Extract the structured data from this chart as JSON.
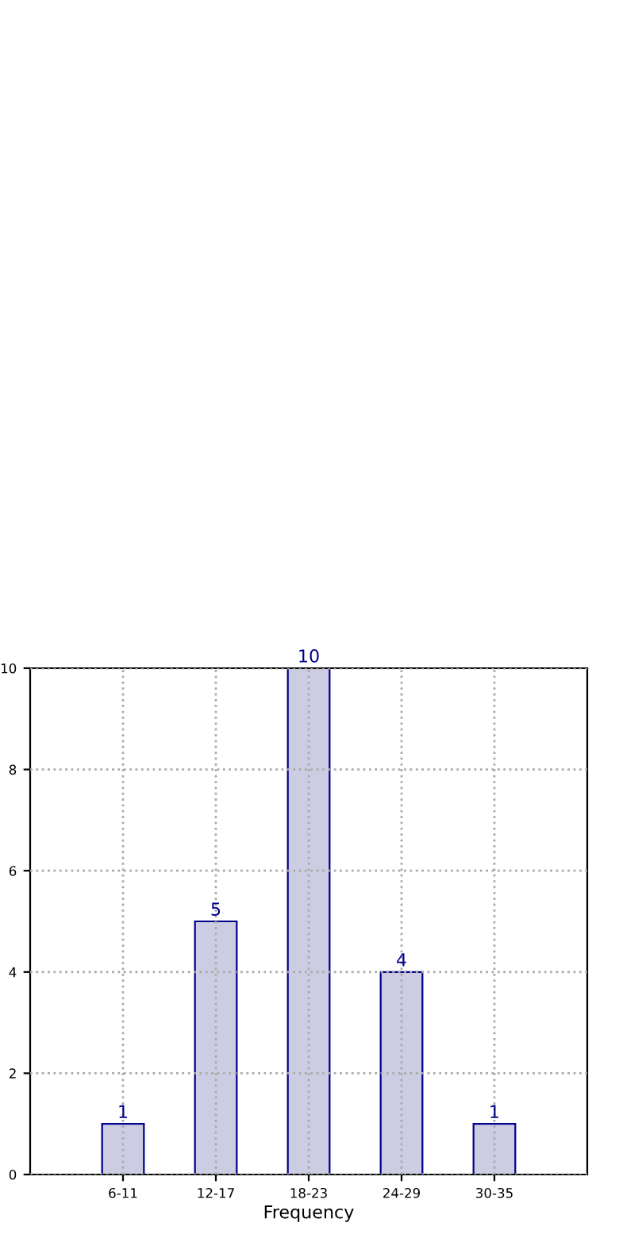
{
  "chart_data": {
    "type": "bar",
    "xlabel": "Frequency",
    "categories": [
      "6-11",
      "12-17",
      "18-23",
      "24-29",
      "30-35"
    ],
    "values": [
      1,
      5,
      10,
      4,
      1
    ],
    "color": "#cccce3",
    "ylim": [
      0,
      10
    ],
    "yticks": [
      0,
      2,
      4,
      6,
      8,
      10
    ],
    "grid": true,
    "data_labels": true
  }
}
